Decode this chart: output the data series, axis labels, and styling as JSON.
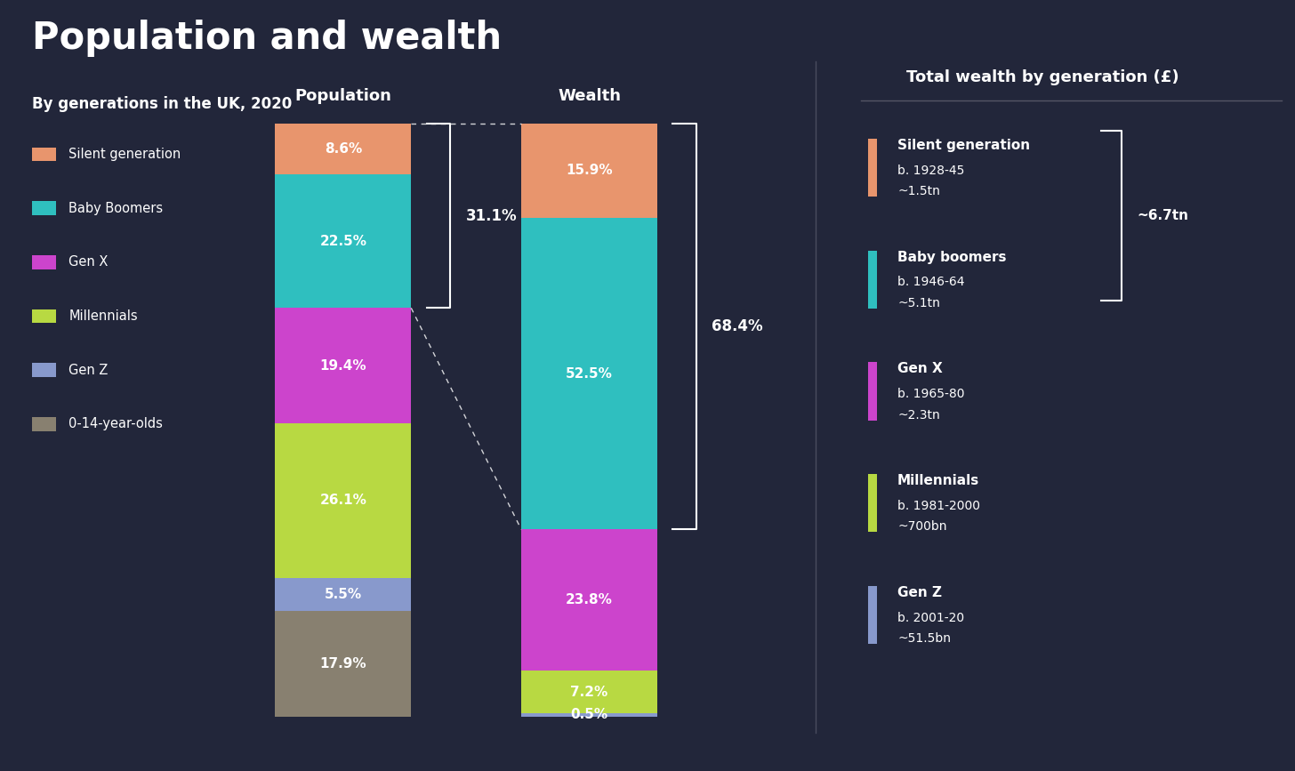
{
  "title": "Population and wealth",
  "subtitle": "By generations in the UK, 2020",
  "background_color": "#22263a",
  "text_color": "#ffffff",
  "categories": [
    "Silent generation",
    "Baby Boomers",
    "Gen X",
    "Millennials",
    "Gen Z",
    "0-14-year-olds"
  ],
  "colors": [
    "#e8956d",
    "#2fbfbf",
    "#cc44cc",
    "#b8d942",
    "#8899cc",
    "#888070"
  ],
  "population_values": [
    8.6,
    22.5,
    19.4,
    26.1,
    5.5,
    17.9
  ],
  "wealth_values": [
    15.9,
    52.5,
    23.8,
    7.2,
    0.5,
    0.1
  ],
  "population_labels": [
    "8.6%",
    "22.5%",
    "19.4%",
    "26.1%",
    "5.5%",
    "17.9%"
  ],
  "wealth_labels": [
    "15.9%",
    "52.5%",
    "23.8%",
    "7.2%",
    "0.5%",
    ""
  ],
  "bracket_31_pct": "31.1%",
  "bracket_68_pct": "68.4%",
  "right_panel_title": "Total wealth by generation (£)",
  "right_panel_entries": [
    {
      "label": "Silent generation",
      "sub1": "b. 1928-45",
      "sub2": "~1.5tn",
      "color": "#e8956d"
    },
    {
      "label": "Baby boomers",
      "sub1": "b. 1946-64",
      "sub2": "~5.1tn",
      "color": "#2fbfbf"
    },
    {
      "label": "Gen X",
      "sub1": "b. 1965-80",
      "sub2": "~2.3tn",
      "color": "#cc44cc"
    },
    {
      "label": "Millennials",
      "sub1": "b. 1981-2000",
      "sub2": "~700bn",
      "color": "#b8d942"
    },
    {
      "label": "Gen Z",
      "sub1": "b. 2001-20",
      "sub2": "~51.5bn",
      "color": "#8899cc"
    }
  ],
  "right_panel_total": "~6.7tn",
  "legend_labels": [
    "Silent generation",
    "Baby Boomers",
    "Gen X",
    "Millennials",
    "Gen Z",
    "0-14-year-olds"
  ]
}
